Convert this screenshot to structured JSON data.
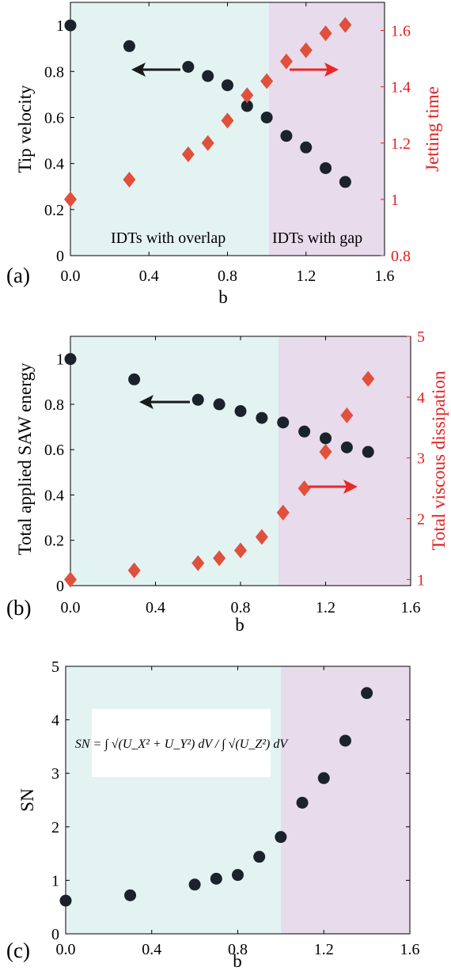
{
  "colors": {
    "left_region": "#e3f3f2",
    "right_region": "#e8dbec",
    "dot": "#1a222b",
    "diamond": "#e0503c",
    "right_axis": "#e02020",
    "left_arrow": "#1a1a1a",
    "right_arrow": "#e82828"
  },
  "chart_data": [
    {
      "type": "scatter",
      "panel_label": "(a)",
      "xlabel": "b",
      "ylabel": "Tip velocity",
      "y2label": "Jetting time",
      "xlim": [
        0,
        1.6
      ],
      "ylim": [
        0,
        1.1
      ],
      "y2lim": [
        0.8,
        1.7
      ],
      "xticks": [
        "0.0",
        "0.4",
        "0.8",
        "1.2",
        "1.6"
      ],
      "yticks": [
        "0",
        "0.2",
        "0.4",
        "0.6",
        "0.8",
        "1"
      ],
      "y2ticks": [
        "0.8",
        "1",
        "1.2",
        "1.4",
        "1.6"
      ],
      "region_split_x": 1.0,
      "region_labels": [
        "IDTs with overlap",
        "IDTs with gap"
      ],
      "arrows": [
        "left",
        "right"
      ],
      "series": [
        {
          "marker": "circle",
          "axis": "left",
          "x": [
            0,
            0.3,
            0.6,
            0.7,
            0.8,
            0.9,
            1.0,
            1.1,
            1.2,
            1.3,
            1.4
          ],
          "y": [
            1.0,
            0.91,
            0.82,
            0.78,
            0.74,
            0.65,
            0.6,
            0.52,
            0.47,
            0.38,
            0.32
          ]
        },
        {
          "marker": "diamond",
          "axis": "right",
          "x": [
            0,
            0.3,
            0.6,
            0.7,
            0.8,
            0.9,
            1.0,
            1.1,
            1.2,
            1.3,
            1.4
          ],
          "y": [
            1.0,
            1.07,
            1.16,
            1.2,
            1.28,
            1.37,
            1.42,
            1.49,
            1.53,
            1.59,
            1.62
          ]
        }
      ]
    },
    {
      "type": "scatter",
      "panel_label": "(b)",
      "xlabel": "b",
      "ylabel": "Total applied SAW energy",
      "y2label": "Total viscous dissipation",
      "xlim": [
        0,
        1.6
      ],
      "ylim": [
        0,
        1.1
      ],
      "y2lim": [
        0.9,
        5
      ],
      "xticks": [
        "0.0",
        "0.4",
        "0.8",
        "1.2",
        "1.6"
      ],
      "yticks": [
        "0",
        "0.2",
        "0.4",
        "0.6",
        "0.8",
        "1"
      ],
      "y2ticks": [
        "1",
        "2",
        "3",
        "4",
        "5"
      ],
      "region_split_x": 1.0,
      "region_labels": [],
      "arrows": [
        "left",
        "right"
      ],
      "series": [
        {
          "marker": "circle",
          "axis": "left",
          "x": [
            0,
            0.3,
            0.6,
            0.7,
            0.8,
            0.9,
            1.0,
            1.1,
            1.2,
            1.3,
            1.4
          ],
          "y": [
            1.0,
            0.91,
            0.82,
            0.8,
            0.77,
            0.74,
            0.72,
            0.68,
            0.65,
            0.61,
            0.59
          ]
        },
        {
          "marker": "diamond",
          "axis": "right",
          "x": [
            0,
            0.3,
            0.6,
            0.7,
            0.8,
            0.9,
            1.0,
            1.1,
            1.2,
            1.3,
            1.4
          ],
          "y": [
            1.0,
            1.15,
            1.27,
            1.35,
            1.48,
            1.7,
            2.1,
            2.5,
            3.1,
            3.7,
            4.3
          ]
        }
      ]
    },
    {
      "type": "scatter",
      "panel_label": "(c)",
      "xlabel": "b",
      "ylabel": "SN",
      "xlim": [
        0,
        1.6
      ],
      "ylim": [
        0,
        5
      ],
      "xticks": [
        "0.0",
        "0.4",
        "0.8",
        "1.2",
        "1.6"
      ],
      "yticks": [
        "0",
        "1",
        "2",
        "3",
        "4",
        "5"
      ],
      "region_split_x": 1.0,
      "region_labels": [],
      "arrows": [],
      "equation": "SN = ∫ √(U_X² + U_Y²) dV / ∫ √(U_Z²) dV",
      "series": [
        {
          "marker": "circle",
          "axis": "left",
          "x": [
            0,
            0.3,
            0.6,
            0.7,
            0.8,
            0.9,
            1.0,
            1.1,
            1.2,
            1.3,
            1.4
          ],
          "y": [
            0.62,
            0.72,
            0.92,
            1.03,
            1.1,
            1.44,
            1.81,
            2.45,
            2.91,
            3.61,
            4.5
          ]
        }
      ]
    }
  ]
}
